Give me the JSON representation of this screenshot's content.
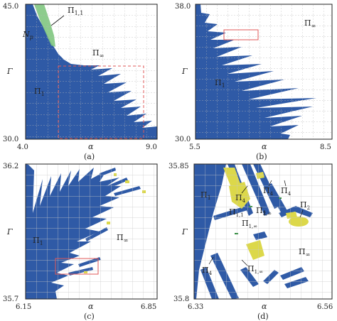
{
  "panels": [
    {
      "id": "a",
      "caption": "(a)",
      "ylabel": "Γ",
      "xlabel": "α",
      "y_top": "45.0",
      "y_bottom": "30.0",
      "x_left": "4.0",
      "x_right": "9.0",
      "labels": {
        "p11": "Π",
        "p11_sub": "1,1",
        "np": "N",
        "np_sub": "p",
        "pinf": "Π",
        "pinf_sub": "∞",
        "p1": "Π",
        "p1_sub": "1"
      }
    },
    {
      "id": "b",
      "caption": "(b)",
      "ylabel": "Γ",
      "xlabel": "α",
      "y_top": "38.0",
      "y_bottom": "30.0",
      "x_left": "5.5",
      "x_right": "8.5",
      "labels": {
        "pinf": "Π",
        "pinf_sub": "∞",
        "p1": "Π",
        "p1_sub": "1"
      }
    },
    {
      "id": "c",
      "caption": "(c)",
      "ylabel": "Γ",
      "xlabel": "α",
      "y_top": "36.2",
      "y_bottom": "35.7",
      "x_left": "6.15",
      "x_right": "6.85",
      "labels": {
        "p1": "Π",
        "p1_sub": "1",
        "pinf": "Π",
        "pinf_sub": "∞"
      }
    },
    {
      "id": "d",
      "caption": "(d)",
      "ylabel": "Γ",
      "xlabel": "α",
      "y_top": "35.85",
      "y_bottom": "35.8",
      "x_left": "6.33",
      "x_right": "6.56",
      "labels": {
        "p1": "Π",
        "p1_sub": "1",
        "p4a": "Π",
        "p4a_sub": "4",
        "p4b": "Π",
        "p4b_sub": "4",
        "p4c": "Π",
        "p4c_sub": "4",
        "p11": "Π",
        "p11_sub": "1,1",
        "p2inf": "Π",
        "p2inf_sub": "2,∞",
        "p2": "Π",
        "p2_sub": "2",
        "p1inf_a": "Π",
        "p1inf_a_sub": "1,∞",
        "p1inf_b": "Π",
        "p1inf_b_sub": "1,∞",
        "pinf": "Π",
        "pinf_sub": "∞"
      }
    }
  ],
  "colors": {
    "blue": "#2f5aa6",
    "yellow": "#dcd84a",
    "green": "#7fc77f",
    "grid": "#b8b8b8",
    "box": "#e05a5a"
  }
}
